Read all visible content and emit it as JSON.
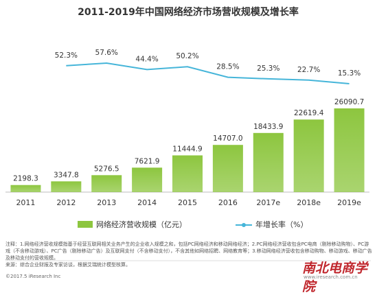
{
  "chart_data": {
    "type": "bar",
    "title": "2011-2019年中国网络经济市场营收规模及增长率",
    "categories": [
      "2011",
      "2012",
      "2013",
      "2014",
      "2015",
      "2016",
      "2017e",
      "2018e",
      "2019e"
    ],
    "series": [
      {
        "name": "网络经济营收规模（亿元）",
        "color": "#8dc63f",
        "type": "bar",
        "values": [
          2198.3,
          3347.8,
          5276.5,
          7621.9,
          11444.9,
          14707.0,
          18433.9,
          22619.4,
          26090.7
        ],
        "value_labels": [
          "2198.3",
          "3347.8",
          "5276.5",
          "7621.9",
          "11444.9",
          "14707.0",
          "18433.9",
          "22619.4",
          "26090.7"
        ]
      },
      {
        "name": "年增长率（%）",
        "color": "#45b5d9",
        "type": "line",
        "axis": "y2",
        "values": [
          null,
          52.3,
          57.6,
          44.4,
          50.2,
          28.5,
          25.3,
          22.7,
          15.3
        ],
        "value_labels": [
          null,
          "52.3%",
          "57.6%",
          "44.4%",
          "50.2%",
          "28.5%",
          "25.3%",
          "22.7%",
          "15.3%"
        ]
      }
    ],
    "notes": "注释：1.网络经济营收规模指基于经营互联网相关业务产生的企业收入规模之和，包括PC网络经济和移动网络经济；2.PC网络经济营收包含PC电商（剔除移动购物）、PC游戏（不含移动游戏）、PC广告（剔除移动广告）及互联网支付（不含移动支付），不含其他如网络招聘、网络教育等；3.移动网络经济营收包含移动购物、移动游戏、移动广告及移动支付的营收规模。",
    "source": "来源：综合企业财报及专家访谈，根据艾瑞统计模型核算。",
    "copyright": "©2017.5 iResearch Inc",
    "website": "www.iresearch.com.cn",
    "watermark": "南北电商学院"
  }
}
